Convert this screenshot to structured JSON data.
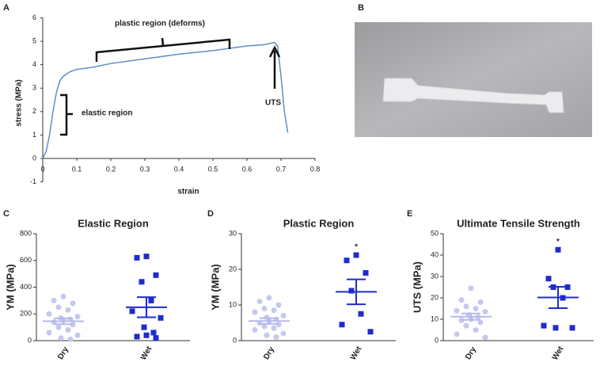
{
  "chart_data": [
    {
      "type": "line",
      "panel_label": "A",
      "xlabel": "strain",
      "ylabel": "stress (MPa)",
      "x": [
        0,
        0.01,
        0.02,
        0.03,
        0.04,
        0.05,
        0.06,
        0.08,
        0.1,
        0.15,
        0.2,
        0.3,
        0.4,
        0.5,
        0.6,
        0.65,
        0.68,
        0.69,
        0.7,
        0.71,
        0.72
      ],
      "values": [
        0,
        0.3,
        1,
        2,
        2.8,
        3.3,
        3.5,
        3.7,
        3.8,
        3.9,
        4.05,
        4.25,
        4.45,
        4.6,
        4.8,
        4.85,
        4.95,
        4.8,
        3.5,
        2,
        1.1
      ],
      "color": "#5b8fc7",
      "xlim": [
        0,
        0.8
      ],
      "xticks": [
        0,
        0.1,
        0.2,
        0.3,
        0.4,
        0.5,
        0.6,
        0.7,
        0.8
      ],
      "ylim": [
        -1,
        6
      ],
      "yticks": [
        -1,
        0,
        1,
        2,
        3,
        4,
        5,
        6
      ],
      "annotations": [
        "plastic region (deforms)",
        "elastic region",
        "UTS"
      ]
    },
    {
      "type": "photo",
      "panel_label": "B"
    },
    {
      "type": "dot",
      "panel_label": "C",
      "title": "Elastic Region",
      "ylabel": "YM (MPa)",
      "categories": [
        "Dry",
        "Wet"
      ],
      "groups": [
        {
          "color": "#c5c8ee",
          "values": [
            330,
            300,
            280,
            250,
            230,
            200,
            180,
            170,
            160,
            150,
            140,
            120,
            100,
            80,
            60,
            40,
            20,
            10
          ],
          "mean": 145,
          "sem": 22
        },
        {
          "color": "#1f2ccc",
          "values": [
            630,
            620,
            490,
            440,
            300,
            220,
            170,
            100,
            60,
            40,
            30,
            20
          ],
          "mean": 250,
          "sem": 75
        }
      ],
      "ylim": [
        0,
        800
      ],
      "yticks": [
        0,
        200,
        400,
        600,
        800
      ]
    },
    {
      "type": "dot",
      "panel_label": "D",
      "title": "Plastic Region",
      "ylabel": "YM (MPa)",
      "categories": [
        "Dry",
        "Wet"
      ],
      "groups": [
        {
          "color": "#c5c8ee",
          "values": [
            12,
            11,
            10,
            9,
            8.5,
            8,
            7,
            6.5,
            6,
            5.5,
            5,
            4.5,
            4,
            3.5,
            3,
            2,
            1.5,
            1
          ],
          "mean": 5.5,
          "sem": 0.8
        },
        {
          "color": "#1f2ccc",
          "values": [
            24,
            22.5,
            19,
            14,
            7.5,
            4.5,
            2.5
          ],
          "mean": 13.7,
          "sem": 3.5
        }
      ],
      "ylim": [
        0,
        30
      ],
      "yticks": [
        0,
        10,
        20,
        30
      ],
      "annotation": "*"
    },
    {
      "type": "dot",
      "panel_label": "E",
      "title": "Ultimate Tensile Strength",
      "ylabel": "UTS (MPa)",
      "categories": [
        "Dry",
        "Wet"
      ],
      "groups": [
        {
          "color": "#c5c8ee",
          "values": [
            24.5,
            19,
            18,
            16,
            15,
            14,
            13.5,
            12,
            11,
            10,
            9.5,
            8.5,
            7,
            5,
            3,
            1.5
          ],
          "mean": 11.2,
          "sem": 1.5
        },
        {
          "color": "#1f2ccc",
          "values": [
            42.5,
            29,
            25,
            25,
            20,
            7,
            6,
            6
          ],
          "mean": 20.2,
          "sem": 5
        }
      ],
      "ylim": [
        0,
        50
      ],
      "yticks": [
        0,
        10,
        20,
        30,
        40,
        50
      ],
      "annotation": "*"
    }
  ]
}
